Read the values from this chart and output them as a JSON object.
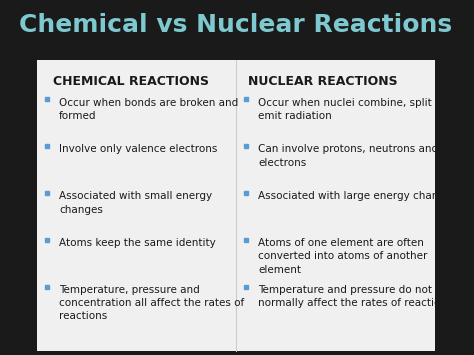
{
  "title": "Chemical vs Nuclear Reactions",
  "title_color": "#7ec8d0",
  "title_fontsize": 18,
  "bg_color": "#1a1a1a",
  "content_bg": "#f0f0f0",
  "left_header": "CHEMICAL REACTIONS",
  "right_header": "NUCLEAR REACTIONS",
  "header_color": "#1a1a1a",
  "header_fontsize": 9,
  "bullet_color": "#5b9bd5",
  "text_color": "#1a1a1a",
  "text_fontsize": 7.5,
  "left_bullets": [
    "Occur when bonds are broken and\nformed",
    "Involve only valence electrons",
    "Associated with small energy\nchanges",
    "Atoms keep the same identity",
    "Temperature, pressure and\nconcentration all affect the rates of\nreactions"
  ],
  "right_bullets": [
    "Occur when nuclei combine, split and\nemit radiation",
    "Can involve protons, neutrons and\nelectrons",
    "Associated with large energy changes",
    "Atoms of one element are often\nconverted into atoms of another\nelement",
    "Temperature and pressure do not\nnormally affect the rates of reactions"
  ]
}
